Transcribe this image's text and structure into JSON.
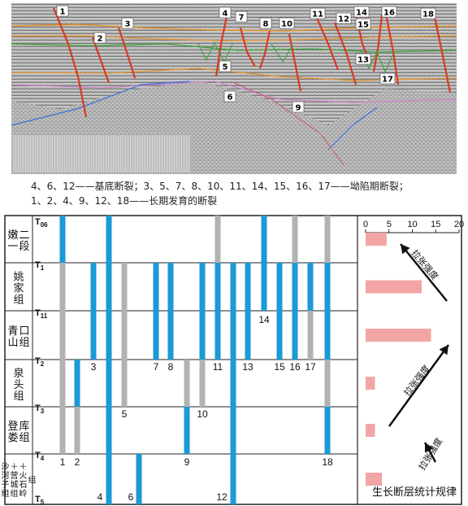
{
  "seismic": {
    "fault_labels": [
      "1",
      "2",
      "3",
      "4",
      "5",
      "6",
      "7",
      "8",
      "9",
      "10",
      "11",
      "12",
      "13",
      "14",
      "15",
      "16",
      "17",
      "18"
    ]
  },
  "captions": {
    "line1": "4、6、12——基底断裂；3、5、7、8、10、11、14、15、16、17——坳陷期断裂；",
    "line2": "1、2、4、9、12、18——长期发育的断裂"
  },
  "chart": {
    "formations": [
      "嫩一二段",
      "姚家组",
      "青山口组",
      "泉头组",
      "登娄库组",
      "沙河子组＋营城组＋火石岭组"
    ],
    "horizons": [
      "T06",
      "T1",
      "T11",
      "T2",
      "T3",
      "T4",
      "T5"
    ],
    "fault_numbers": [
      "1",
      "2",
      "3",
      "4",
      "5",
      "6",
      "7",
      "8",
      "9",
      "10",
      "11",
      "12",
      "13",
      "14",
      "15",
      "16",
      "17",
      "18"
    ],
    "stat_axis": {
      "ticks": [
        "0",
        "5",
        "10",
        "15",
        "20"
      ],
      "min": 0,
      "max": 20
    },
    "bar_values": [
      4.5,
      12,
      14,
      2,
      2,
      3.5
    ],
    "arrow_labels": [
      "拉张强度",
      "拉张强度",
      "拉张强度"
    ],
    "footer": "生长断层统计规律",
    "colors": {
      "active": "#1a9ad6",
      "inactive": "#b2b2b2",
      "bar": "#f2a5a5",
      "arrow": "#111111"
    }
  }
}
